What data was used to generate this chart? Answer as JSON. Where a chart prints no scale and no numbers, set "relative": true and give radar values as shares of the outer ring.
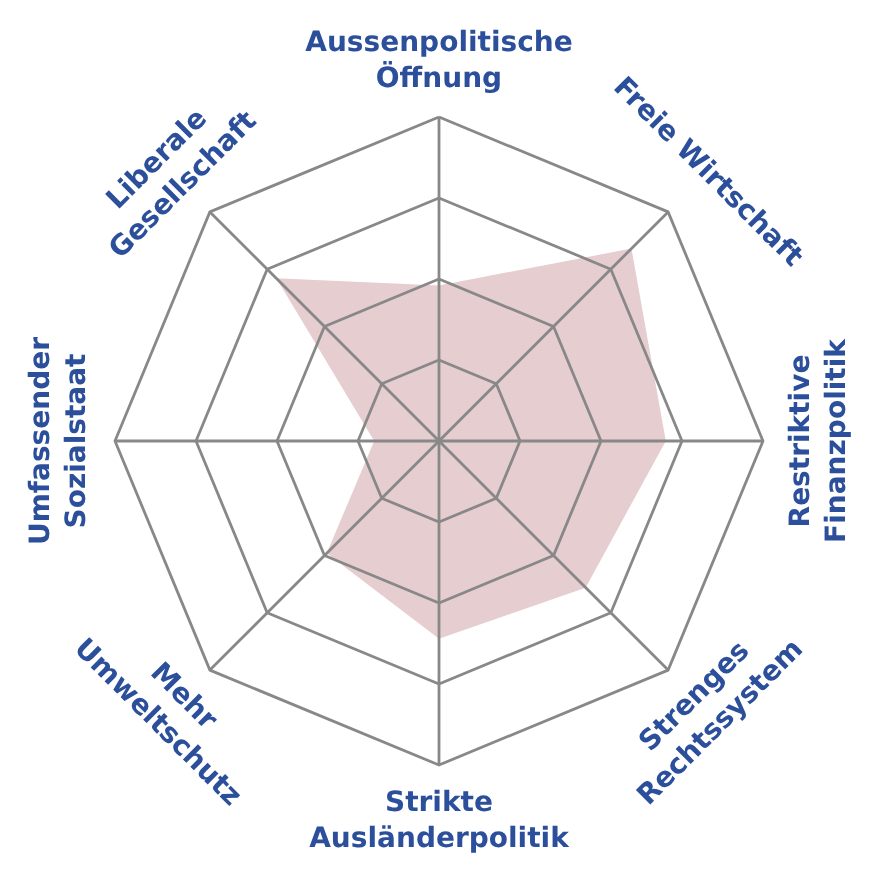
{
  "chart_data": {
    "type": "radar",
    "relative": true,
    "grid": true,
    "categories": [
      "Aussenpolitische\nÖffnung",
      "Freie Wirtschaft",
      "Restriktive\nFinanzpolitik",
      "Strenges\nRechtssystem",
      "Strikte\nAusländerpolitik",
      "Mehr\nUmweltschutz",
      "Umfassender\nSozialstaat",
      "Liberale\nGesellschaft"
    ],
    "series": [
      {
        "color": "#e6cdd0",
        "values": [
          0.48,
          0.84,
          0.7,
          0.64,
          0.61,
          0.49,
          0.2,
          0.71
        ]
      }
    ]
  }
}
